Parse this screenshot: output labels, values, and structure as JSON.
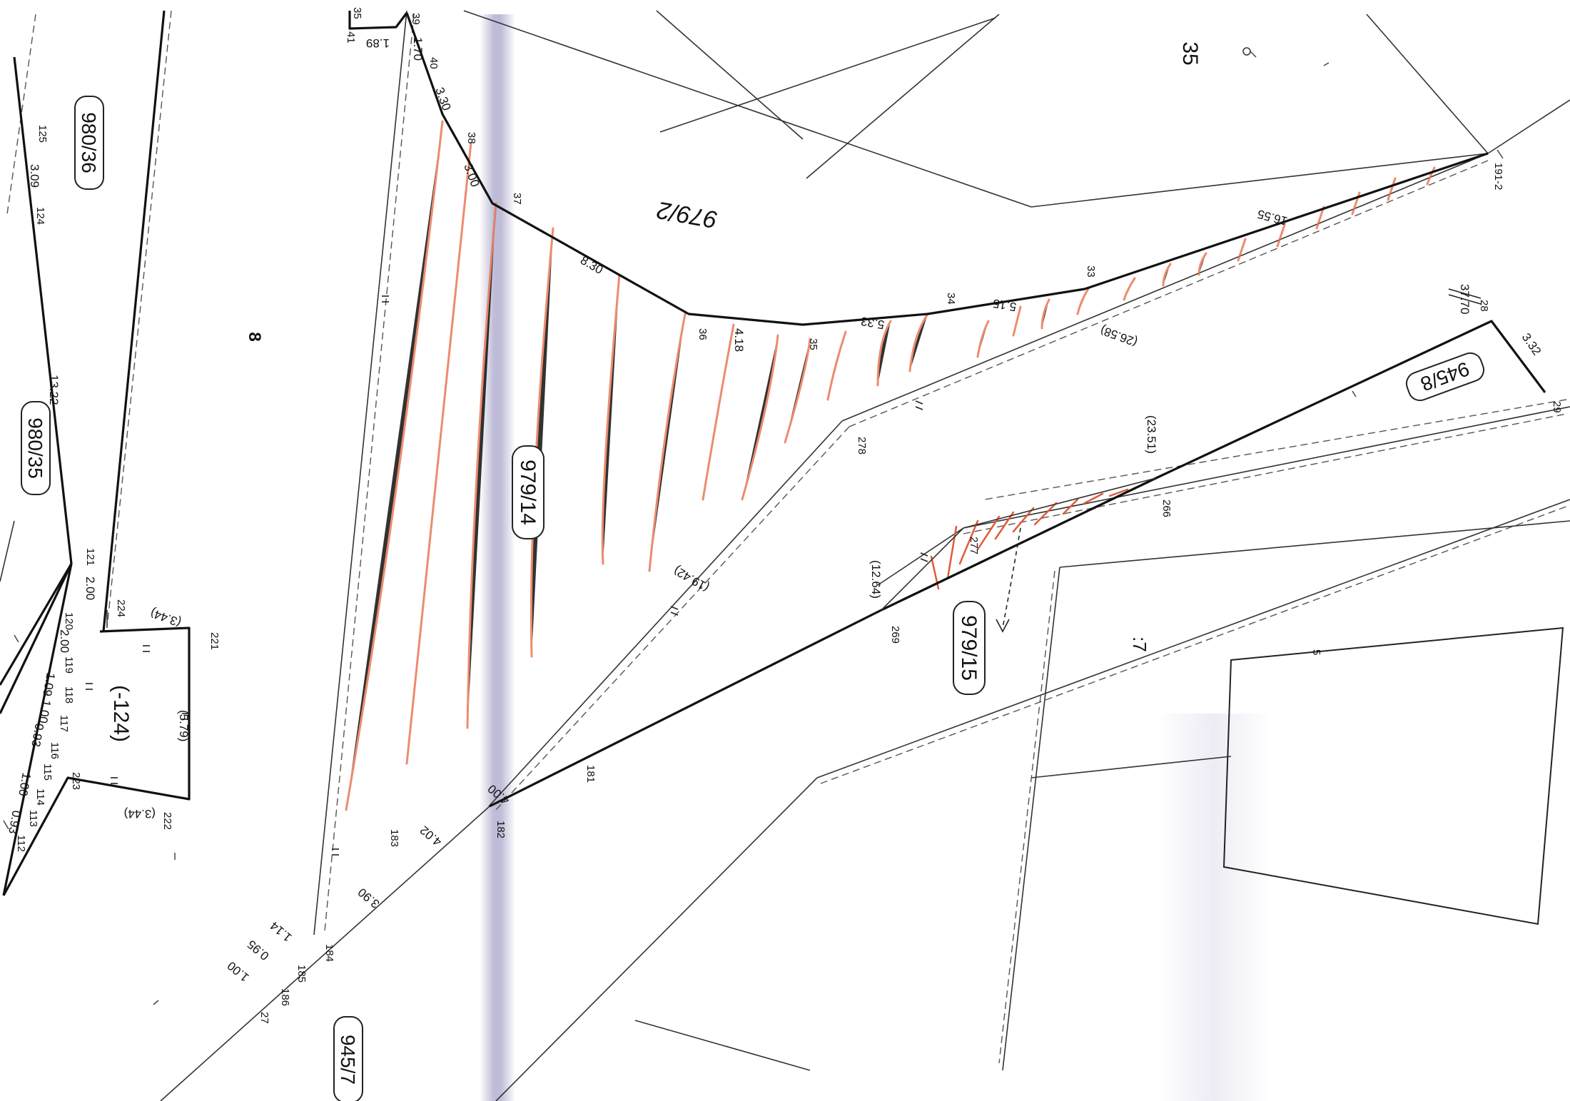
{
  "parcels": {
    "p_979_14": "979/14",
    "p_979_15": "979/15",
    "p_979_2": "979/2",
    "p_945_7": "945/7",
    "p_945_8": "945/8",
    "p_980_36": "980/36",
    "p_980_35": "980/35",
    "p_124": "(-124)",
    "p_35": "35",
    "p_8": "8",
    "p_7": ":7"
  },
  "points": {
    "p41": "41",
    "p35a": "35",
    "p39": "39",
    "p40": "40",
    "p38": "38",
    "p37": "37",
    "p36": "36",
    "p35": "35",
    "p34": "34",
    "p33": "33",
    "p191": "191-2",
    "p28": "28",
    "p29": "29",
    "p278": "278",
    "p266": "266",
    "p277": "277",
    "p269": "269",
    "p181": "181",
    "p182": "182",
    "p183": "183",
    "p184": "184",
    "p185": "185",
    "p186": "186",
    "p27": "27",
    "p221": "221",
    "p222": "222",
    "p223": "223",
    "p224": "224",
    "p121": "121",
    "p120": "120",
    "p119": "119",
    "p118": "118",
    "p117": "117",
    "p116": "116",
    "p115": "115",
    "p114": "114",
    "p113": "113",
    "p112": "112",
    "p125": "125",
    "p124": "124",
    "p5": "5"
  },
  "distances": {
    "d189": "1.89",
    "d170": "1.70",
    "d330": "3.30",
    "d300": "3.00",
    "d830": "8.30",
    "d418": "4.18",
    "d533": "5.33",
    "d515": "5.15",
    "d1655": "16.55",
    "d2658": "(26.58)",
    "d3770": "37.70",
    "d332": "3.32",
    "d2351": "(23.51)",
    "d1942": "(19.42)",
    "d1264": "(12.64)",
    "d400": "4.00",
    "d402": "4.02",
    "d390": "3.90",
    "d114": "1.14",
    "d095": "0.95",
    "d100": "1.00",
    "d344a": "(3.44)",
    "d344b": "(3.44)",
    "d579": "(5.79)",
    "d1322": "13.22",
    "d309": "3.09",
    "d200a": "2.00",
    "d200b": "2.00",
    "d109": "1.09",
    "d100b": "1.00",
    "d093": "0.93",
    "d100c": "1.00",
    "d093b": "0.93"
  },
  "colors": {
    "line": "#1a1a1a",
    "thin": "#3a3a3a",
    "hatch": "#e8704a",
    "scan_band": "#8a86b8"
  }
}
